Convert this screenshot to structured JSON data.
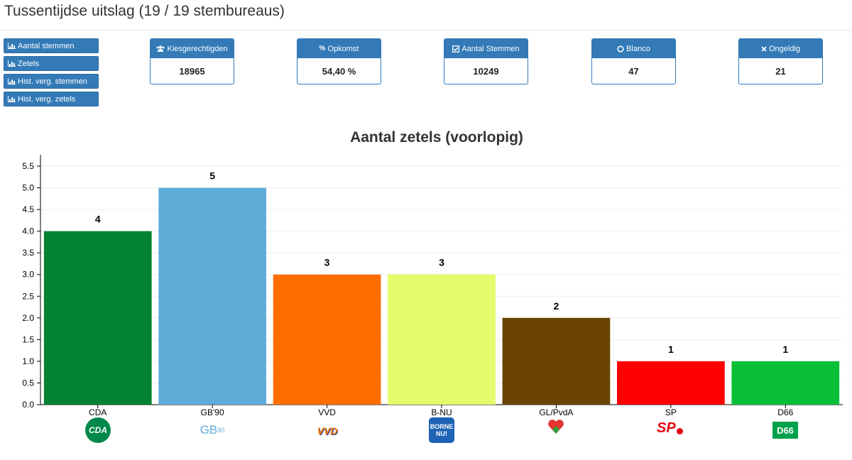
{
  "page": {
    "title": "Tussentijdse uitslag (19 / 19 stembureaus)"
  },
  "nav": [
    {
      "label": "Aantal stemmen",
      "icon": "bar-chart-icon"
    },
    {
      "label": "Zetels",
      "icon": "bar-chart-icon"
    },
    {
      "label": "Hist. verg. stemmen",
      "icon": "bar-chart-icon"
    },
    {
      "label": "Hist. verg. zetels",
      "icon": "bar-chart-icon"
    }
  ],
  "stats": [
    {
      "label": "Kiesgerechtigden",
      "value": "18965",
      "icon": "users-icon"
    },
    {
      "label": "Opkomst",
      "value": "54,40 %",
      "icon": "percent-icon"
    },
    {
      "label": "Aantal Stemmen",
      "value": "10249",
      "icon": "checkbox-icon"
    },
    {
      "label": "Blanco",
      "value": "47",
      "icon": "circle-icon"
    },
    {
      "label": "Ongeldig",
      "value": "21",
      "icon": "times-icon"
    }
  ],
  "colors": {
    "primary": "#337ab7"
  },
  "chart_data": {
    "type": "bar",
    "title": "Aantal zetels (voorlopig)",
    "xlabel": "",
    "ylabel": "",
    "ylim": [
      0,
      5.5
    ],
    "yticks": [
      "0.0",
      "0.5",
      "1.0",
      "1.5",
      "2.0",
      "2.5",
      "3.0",
      "3.5",
      "4.0",
      "4.5",
      "5.0",
      "5.5"
    ],
    "grid": true,
    "categories": [
      "CDA",
      "GB'90",
      "VVD",
      "B-NU",
      "GL/PvdA",
      "SP",
      "D66"
    ],
    "values": [
      4,
      5,
      3,
      3,
      2,
      1,
      1
    ],
    "colors": [
      "#048234",
      "#5fadd9",
      "#ff6d00",
      "#e2fc6b",
      "#6a4400",
      "#ff0000",
      "#09bf38"
    ],
    "logos": [
      {
        "party": "CDA",
        "text": "CDA"
      },
      {
        "party": "GB'90",
        "text": "GB",
        "sup": "90"
      },
      {
        "party": "VVD",
        "text": "VVD"
      },
      {
        "party": "B-NU",
        "text": "BORNE NU!"
      },
      {
        "party": "GL/PvdA",
        "text": ""
      },
      {
        "party": "SP",
        "text": "SP"
      },
      {
        "party": "D66",
        "text": "D66"
      }
    ]
  }
}
